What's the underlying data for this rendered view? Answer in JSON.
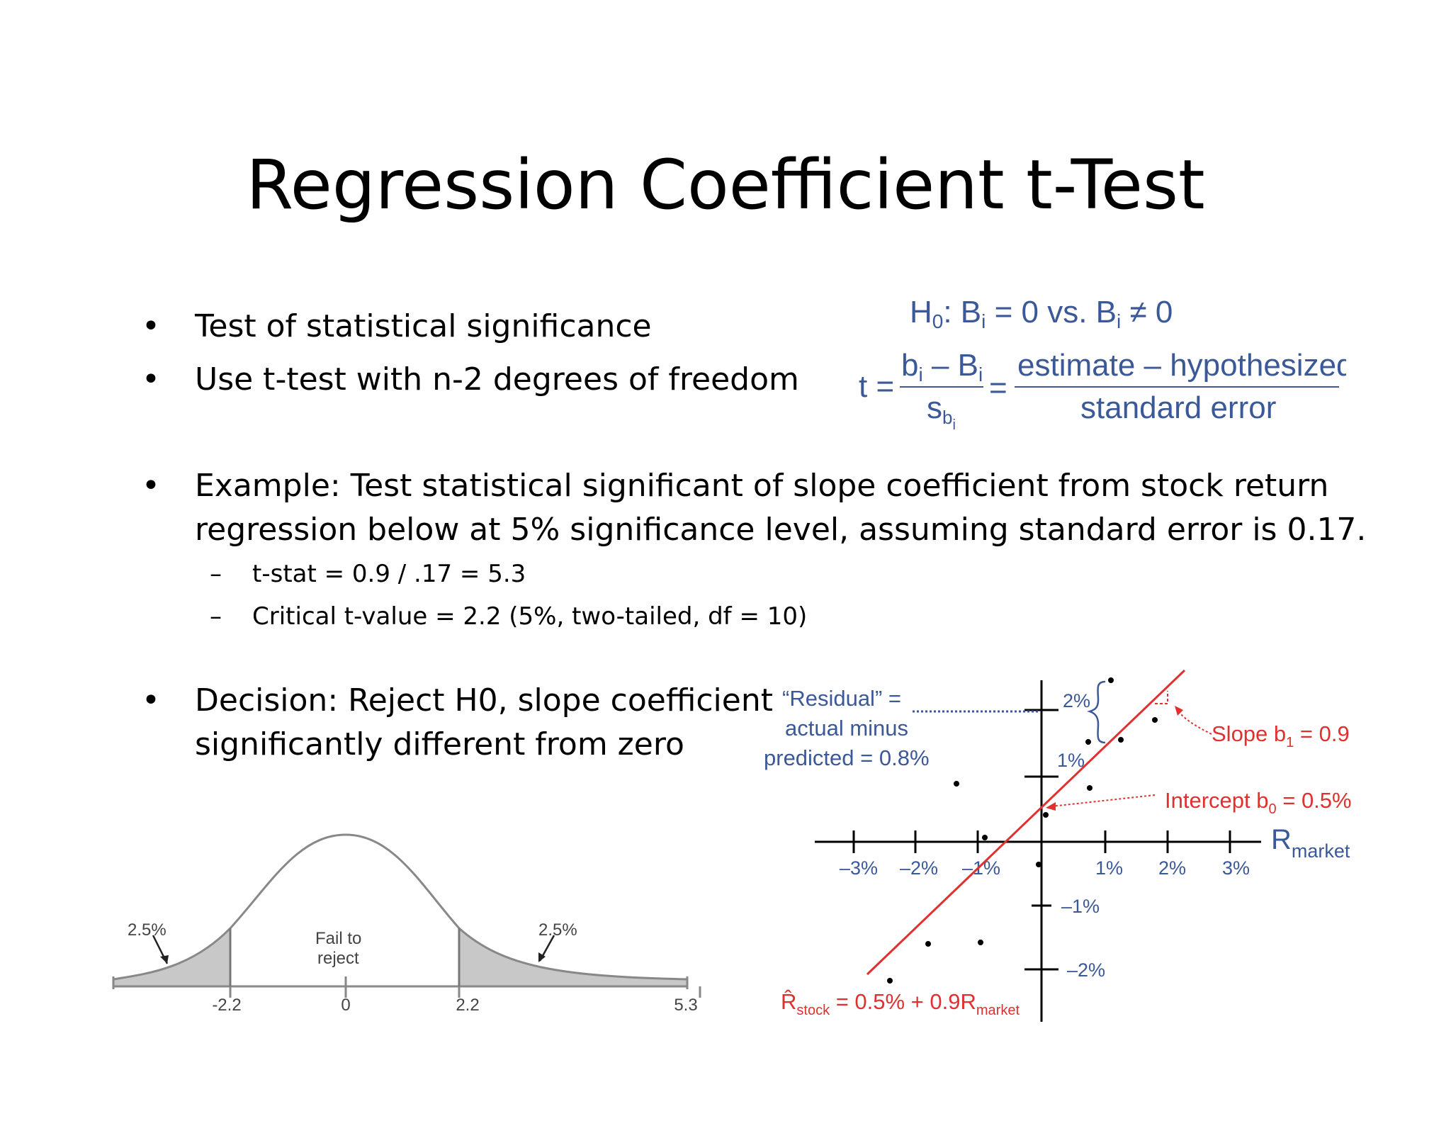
{
  "slide": {
    "title": "Regression Coefficient t-Test",
    "bullets": [
      "Test of statistical significance",
      "Use t-test with n-2 degrees of freedom",
      "Example: Test statistical significant of slope coefficient from stock return\nregression below at 5% significance level, assuming standard error is 0.17.",
      "Decision: Reject H0, slope coefficient\nsignificantly different from zero"
    ],
    "subbullets": [
      "t-stat = 0.9 / .17 = 5.3",
      "Critical t-value = 2.2 (5%, two-tailed, df = 10)"
    ],
    "bullet_glyph": "•",
    "dash_glyph": "–"
  },
  "formula": {
    "hypothesis": {
      "H": "H",
      "sub0": "0",
      "rest": ": B",
      "subi": "i",
      "eq": " = 0 vs. B",
      "subi2": "i",
      "ne": " ≠ 0"
    },
    "t_lhs": "t =",
    "num_left": "b",
    "num_sub": "i",
    "num_minus": " – B",
    "num_sub2": "i",
    "den_s": "s",
    "den_b": "b",
    "den_i": "i",
    "equals": "=",
    "num_right": "estimate – hypothesized",
    "den_right": "standard error",
    "color": "#3b5998"
  },
  "distribution": {
    "left_tail_pct": "2.5%",
    "right_tail_pct": "2.5%",
    "center_label_1": "Fail to",
    "center_label_2": "reject",
    "ticks": [
      "-2.2",
      "0",
      "2.2",
      "5.3"
    ]
  },
  "regression": {
    "residual_label_1": "“Residual” =",
    "residual_label_2": "actual minus",
    "residual_label_3": "predicted = 0.8%",
    "slope_label": "Slope b",
    "slope_sub": "1",
    "slope_val": " = 0.9",
    "intercept_label": "Intercept b",
    "intercept_sub": "0",
    "intercept_val": " = 0.5%",
    "axis_label": "R",
    "axis_sub": "market",
    "x_ticks": [
      "–3%",
      "–2%",
      "–1%",
      "1%",
      "2%",
      "3%"
    ],
    "y_ticks": [
      "2%",
      "1%",
      "–1%",
      "–2%"
    ],
    "eq_r": "R̂",
    "eq_stock": "stock",
    "eq_mid": " = 0.5% + 0.9R",
    "eq_market": "market",
    "red": "#e03030",
    "blue": "#3b5998"
  }
}
